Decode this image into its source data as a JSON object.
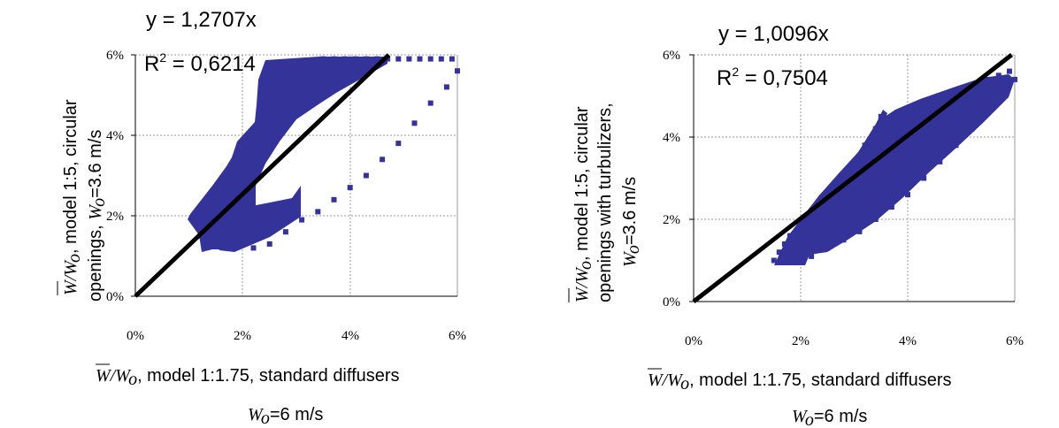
{
  "chart_data": [
    {
      "type": "scatter",
      "xlim": [
        0,
        6
      ],
      "ylim": [
        0,
        6
      ],
      "x_ticks": [
        "0%",
        "2%",
        "4%",
        "6%"
      ],
      "y_ticks": [
        "0%",
        "2%",
        "4%",
        "6%"
      ],
      "grid": true,
      "fit_equation": "y = 1,2707x",
      "r2_prefix": "R",
      "r2_sup": "2",
      "r2_value": " = 0,6214",
      "trendline_slope": 1.2707,
      "marker_color": "#33339a",
      "ylabel": {
        "line1": ", model 1:5, circular",
        "line2a": "openings,  ",
        "line2b": "=3.6 m/s"
      },
      "xlabel": {
        "line1": ", model 1:1.75, standard diffusers",
        "line2": "=6 m/s"
      },
      "series_points": [
        [
          1.6,
          1.4
        ],
        [
          1.7,
          1.5
        ],
        [
          1.8,
          1.6
        ],
        [
          2.0,
          1.8
        ],
        [
          2.2,
          2.0
        ],
        [
          2.1,
          2.6
        ],
        [
          2.2,
          2.9
        ],
        [
          2.3,
          3.2
        ],
        [
          2.4,
          3.5
        ],
        [
          2.5,
          3.8
        ],
        [
          2.6,
          4.1
        ],
        [
          2.7,
          4.4
        ],
        [
          2.8,
          4.7
        ],
        [
          2.9,
          5.0
        ],
        [
          3.0,
          5.3
        ],
        [
          3.1,
          5.5
        ],
        [
          3.2,
          5.7
        ],
        [
          3.3,
          5.8
        ],
        [
          3.5,
          5.9
        ],
        [
          3.7,
          5.9
        ],
        [
          3.9,
          5.9
        ],
        [
          4.1,
          5.9
        ],
        [
          4.3,
          5.9
        ],
        [
          4.5,
          5.9
        ],
        [
          4.7,
          5.9
        ],
        [
          4.9,
          5.9
        ],
        [
          5.1,
          5.9
        ],
        [
          5.3,
          5.9
        ],
        [
          5.5,
          5.9
        ],
        [
          5.7,
          5.9
        ],
        [
          5.9,
          5.9
        ],
        [
          6.0,
          5.6
        ],
        [
          5.8,
          5.2
        ],
        [
          5.5,
          4.8
        ],
        [
          5.2,
          4.3
        ],
        [
          4.9,
          3.8
        ],
        [
          4.6,
          3.4
        ],
        [
          4.3,
          3.0
        ],
        [
          4.0,
          2.7
        ],
        [
          3.7,
          2.4
        ],
        [
          3.4,
          2.1
        ],
        [
          3.1,
          1.9
        ],
        [
          2.8,
          1.6
        ],
        [
          2.5,
          1.3
        ],
        [
          2.2,
          1.2
        ]
      ]
    },
    {
      "type": "scatter",
      "xlim": [
        0,
        6
      ],
      "ylim": [
        0,
        6
      ],
      "x_ticks": [
        "0%",
        "2%",
        "4%",
        "6%"
      ],
      "y_ticks": [
        "0%",
        "2%",
        "4%",
        "6%"
      ],
      "grid": true,
      "fit_equation": "y = 1,0096x",
      "r2_prefix": "R",
      "r2_sup": "2",
      "r2_value": " = 0,7504",
      "trendline_slope": 1.0096,
      "marker_color": "#33339a",
      "ylabel": {
        "line1": ", model 1:5, circular",
        "line2": "openings with turbulizers,",
        "line3": "=3.6 m/s"
      },
      "xlabel": {
        "line1": ", model 1:1.75, standard diffusers",
        "line2": "=6 m/s"
      },
      "series_points": [
        [
          1.5,
          1.0
        ],
        [
          1.6,
          1.2
        ],
        [
          1.7,
          1.4
        ],
        [
          1.8,
          1.6
        ],
        [
          2.0,
          1.9
        ],
        [
          2.2,
          2.2
        ],
        [
          2.4,
          2.5
        ],
        [
          2.6,
          2.8
        ],
        [
          2.8,
          3.1
        ],
        [
          3.0,
          3.4
        ],
        [
          3.2,
          3.8
        ],
        [
          3.4,
          4.2
        ],
        [
          3.5,
          4.5
        ],
        [
          3.7,
          4.0
        ],
        [
          3.9,
          4.2
        ],
        [
          4.1,
          4.5
        ],
        [
          4.3,
          4.7
        ],
        [
          4.5,
          4.9
        ],
        [
          4.7,
          5.0
        ],
        [
          4.9,
          5.1
        ],
        [
          5.1,
          5.2
        ],
        [
          5.3,
          5.3
        ],
        [
          5.5,
          5.4
        ],
        [
          5.7,
          5.5
        ],
        [
          5.9,
          5.6
        ],
        [
          6.0,
          5.4
        ],
        [
          5.8,
          5.0
        ],
        [
          5.5,
          4.6
        ],
        [
          5.2,
          4.2
        ],
        [
          4.9,
          3.8
        ],
        [
          4.6,
          3.4
        ],
        [
          4.3,
          3.0
        ],
        [
          4.0,
          2.6
        ],
        [
          3.7,
          2.3
        ],
        [
          3.4,
          2.0
        ],
        [
          3.1,
          1.7
        ],
        [
          2.8,
          1.5
        ],
        [
          2.5,
          1.3
        ],
        [
          2.2,
          1.1
        ],
        [
          1.9,
          1.0
        ]
      ]
    }
  ],
  "symbols": {
    "w_bar": "W",
    "slash": "/",
    "w_o": "W",
    "sub_o": "o"
  }
}
